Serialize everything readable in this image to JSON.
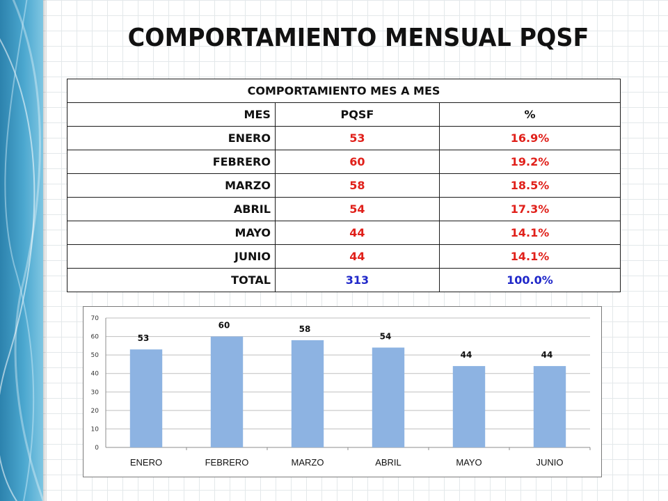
{
  "title": "COMPORTAMIENTO MENSUAL PQSF",
  "table": {
    "caption": "COMPORTAMIENTO  MES A MES",
    "headers": [
      "MES",
      "PQSF",
      "%"
    ],
    "rows": [
      {
        "mes": "ENERO",
        "pqsf": "53",
        "pct": "16.9%"
      },
      {
        "mes": "FEBRERO",
        "pqsf": "60",
        "pct": "19.2%"
      },
      {
        "mes": "MARZO",
        "pqsf": "58",
        "pct": "18.5%"
      },
      {
        "mes": "ABRIL",
        "pqsf": "54",
        "pct": "17.3%"
      },
      {
        "mes": "MAYO",
        "pqsf": "44",
        "pct": "14.1%"
      },
      {
        "mes": "JUNIO",
        "pqsf": "44",
        "pct": "14.1%"
      }
    ],
    "total": {
      "mes": "TOTAL",
      "pqsf": "313",
      "pct": "100.0%"
    }
  },
  "colors": {
    "value_red": "#e0201a",
    "total_blue": "#1f27c9",
    "bar": "#8db3e2",
    "side_band": "#3a95c2"
  },
  "chart_data": {
    "type": "bar",
    "categories": [
      "ENERO",
      "FEBRERO",
      "MARZO",
      "ABRIL",
      "MAYO",
      "JUNIO"
    ],
    "values": [
      53,
      60,
      58,
      54,
      44,
      44
    ],
    "yticks": [
      0,
      10,
      20,
      30,
      40,
      50,
      60,
      70
    ],
    "ylim": [
      0,
      70
    ],
    "grid": true,
    "legend": "none",
    "data_labels": true
  }
}
